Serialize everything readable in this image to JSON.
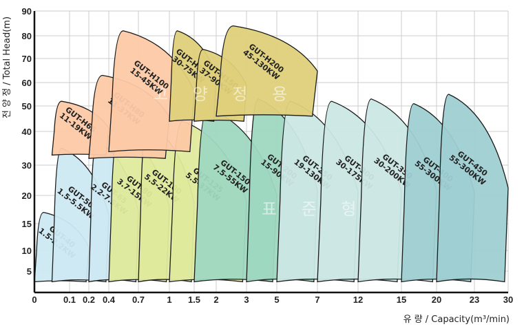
{
  "chart_data": {
    "type": "area",
    "title": "",
    "xlabel": "유 량 / Capacity(m³/min)",
    "ylabel": "전 양 정 / Total Head(m)",
    "x_ticks": [
      "0",
      "0.1",
      "0.2",
      "0.4",
      "0.7",
      "1",
      "1.5",
      "2",
      "3",
      "5",
      "7",
      "12",
      "15",
      "20",
      "23",
      "30"
    ],
    "y_ticks": [
      "5",
      "10",
      "15",
      "20",
      "30",
      "40",
      "50",
      "60",
      "70",
      "80",
      "90"
    ],
    "ylim": [
      2,
      90
    ],
    "grid": true,
    "watermarks": [
      "고 양 정 용",
      "표 준 형"
    ],
    "colors": {
      "blue": "#cde9f2",
      "peach": "#fcc9a6",
      "lime": "#dfea9c",
      "gold": "#dfd07a",
      "green": "#9fd8c0",
      "mint": "#cbe7e4",
      "teal": "#9fcfd2",
      "grid": "#cccccc",
      "outline": "#1a1a1a"
    },
    "series": [
      {
        "name": "GUT-40",
        "rating": "1.5-2.2KW",
        "x_range": [
          0,
          0.2
        ],
        "head_range": [
          3.5,
          17
        ],
        "color": "blue"
      },
      {
        "name": "GUT-50",
        "rating": "1.5-5.5KW",
        "x_range": [
          0.05,
          0.4
        ],
        "head_range": [
          3.5,
          35
        ],
        "color": "blue"
      },
      {
        "name": "GUT-65",
        "rating": "2.2-7.5KW",
        "x_range": [
          0.2,
          0.7
        ],
        "head_range": [
          3.5,
          37
        ],
        "color": "blue"
      },
      {
        "name": "GUT-80",
        "rating": "3.7-15KW",
        "x_range": [
          0.4,
          1
        ],
        "head_range": [
          3.5,
          40
        ],
        "color": "lime"
      },
      {
        "name": "GUT-100",
        "rating": "5.5-22KW",
        "x_range": [
          0.7,
          1.5
        ],
        "head_range": [
          3.5,
          43
        ],
        "color": "lime"
      },
      {
        "name": "GUT-125",
        "rating": "5.5-37KW",
        "x_range": [
          1,
          3
        ],
        "head_range": [
          3.5,
          44
        ],
        "color": "lime"
      },
      {
        "name": "GUT-150",
        "rating": "7.5-55KW",
        "x_range": [
          1.5,
          5
        ],
        "head_range": [
          3.5,
          49
        ],
        "color": "green"
      },
      {
        "name": "GUT-200",
        "rating": "15-90KW",
        "x_range": [
          3,
          7
        ],
        "head_range": [
          3.5,
          53
        ],
        "color": "green"
      },
      {
        "name": "GUT-250",
        "rating": "19-130KW",
        "x_range": [
          5,
          12
        ],
        "head_range": [
          3.5,
          52
        ],
        "color": "mint"
      },
      {
        "name": "GUT-300",
        "rating": "30-175KW",
        "x_range": [
          7,
          15
        ],
        "head_range": [
          3.5,
          52
        ],
        "color": "mint"
      },
      {
        "name": "GUT-350",
        "rating": "30-200KW",
        "x_range": [
          12,
          20
        ],
        "head_range": [
          3.5,
          53
        ],
        "color": "mint"
      },
      {
        "name": "GUT-400",
        "rating": "55-300KW",
        "x_range": [
          15,
          23
        ],
        "head_range": [
          3.5,
          51
        ],
        "color": "teal"
      },
      {
        "name": "GUT-450",
        "rating": "55-300KW",
        "x_range": [
          20,
          30
        ],
        "head_range": [
          3.5,
          55
        ],
        "color": "teal"
      },
      {
        "name": "GUT-H65",
        "rating": "11-19KW",
        "x_range": [
          0.05,
          0.4
        ],
        "head_range": [
          33,
          52
        ],
        "color": "peach"
      },
      {
        "name": "GUT-H80",
        "rating": "11-37KW",
        "x_range": [
          0.2,
          1
        ],
        "head_range": [
          32,
          63
        ],
        "color": "peach"
      },
      {
        "name": "GUT-H100",
        "rating": "15-45KW",
        "x_range": [
          0.4,
          1.5
        ],
        "head_range": [
          34,
          82
        ],
        "color": "peach"
      },
      {
        "name": "GUT-H125",
        "rating": "30-75KW",
        "x_range": [
          1,
          2
        ],
        "head_range": [
          44,
          82
        ],
        "color": "gold"
      },
      {
        "name": "GUT-H150",
        "rating": "37-90KW",
        "x_range": [
          1.5,
          3
        ],
        "head_range": [
          44,
          74
        ],
        "color": "gold"
      },
      {
        "name": "GUT-H200",
        "rating": "45-130KW",
        "x_range": [
          2,
          7
        ],
        "head_range": [
          46,
          84
        ],
        "color": "gold"
      }
    ]
  }
}
